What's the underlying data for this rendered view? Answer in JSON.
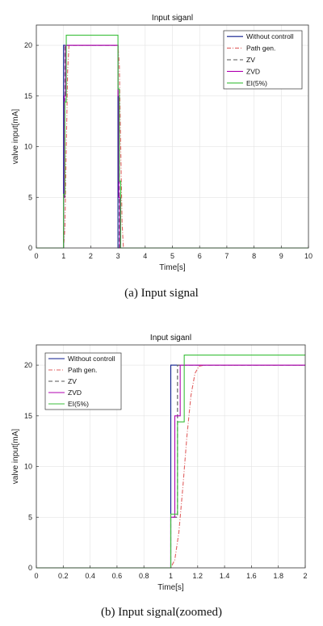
{
  "chart_data": [
    {
      "type": "line",
      "title": "Input siganl",
      "xlabel": "Time[s]",
      "ylabel": "valve input[mA]",
      "caption": "(a)  Input  signal",
      "xlim": [
        0,
        10
      ],
      "ylim": [
        0,
        22
      ],
      "xticks": [
        "0",
        "1",
        "2",
        "3",
        "4",
        "5",
        "6",
        "7",
        "8",
        "9",
        "10"
      ],
      "yticks": [
        "0",
        "5",
        "10",
        "15",
        "20"
      ],
      "grid": true,
      "legend_position": "top-right",
      "series": [
        {
          "name": "Without controll",
          "color": "#0b1a8c",
          "dash": "",
          "x": [
            0,
            1.0,
            1.0,
            3.0,
            3.0,
            10
          ],
          "y": [
            0,
            0,
            20,
            20,
            0,
            0
          ]
        },
        {
          "name": "Path gen.",
          "color": "#e06060",
          "dash": "5,2,1,2",
          "x": [
            0,
            1.0,
            1.05,
            1.1,
            1.15,
            1.2,
            3.0,
            3.05,
            3.1,
            3.15,
            3.2,
            10
          ],
          "y": [
            0,
            0,
            2,
            10,
            17.5,
            20,
            20,
            18,
            10,
            2.5,
            0,
            0
          ]
        },
        {
          "name": "ZV",
          "color": "#555555",
          "dash": "5,3",
          "x": [
            0,
            1.0,
            1.0,
            1.05,
            1.05,
            3.0,
            3.0,
            3.05,
            3.05,
            10
          ],
          "y": [
            0,
            0,
            5,
            5,
            20,
            20,
            15,
            15,
            0,
            0
          ]
        },
        {
          "name": "ZVD",
          "color": "#b000b0",
          "dash": "",
          "x": [
            0,
            1.0,
            1.0,
            1.03,
            1.03,
            1.07,
            1.07,
            3.0,
            3.0,
            3.03,
            3.03,
            3.07,
            3.07,
            10
          ],
          "y": [
            0,
            0,
            5,
            5,
            15,
            15,
            20,
            20,
            15,
            15,
            5,
            5,
            0,
            0
          ]
        },
        {
          "name": "EI(5%)",
          "color": "#3bbf3b",
          "dash": "",
          "x": [
            0,
            1.0,
            1.0,
            1.05,
            1.05,
            1.1,
            1.1,
            3.0,
            3.0,
            3.05,
            3.05,
            3.1,
            3.1,
            10
          ],
          "y": [
            0,
            0,
            5.3,
            5.3,
            14.4,
            14.4,
            21,
            21,
            15.7,
            15.7,
            6.6,
            6.6,
            0,
            0
          ]
        }
      ]
    },
    {
      "type": "line",
      "title": "Input siganl",
      "xlabel": "Time[s]",
      "ylabel": "valve input[mA]",
      "caption": "(b)  Input  signal(zoomed)",
      "xlim": [
        0,
        2
      ],
      "ylim": [
        0,
        22
      ],
      "xticks": [
        "0",
        "0.2",
        "0.4",
        "0.6",
        "0.8",
        "1",
        "1.2",
        "1.4",
        "1.6",
        "1.8",
        "2"
      ],
      "yticks": [
        "0",
        "5",
        "10",
        "15",
        "20"
      ],
      "grid": true,
      "legend_position": "top-left",
      "series": [
        {
          "name": "Without controll",
          "color": "#0b1a8c",
          "dash": "",
          "x": [
            0,
            1.0,
            1.0,
            2.0
          ],
          "y": [
            0,
            0,
            20,
            20
          ]
        },
        {
          "name": "Path gen.",
          "color": "#e06060",
          "dash": "5,2,1,2",
          "x": [
            0,
            1.0,
            1.03,
            1.06,
            1.09,
            1.12,
            1.15,
            1.18,
            1.21,
            1.25,
            2.0
          ],
          "y": [
            0,
            0,
            0.8,
            3.5,
            8,
            13,
            17,
            19.2,
            19.9,
            20,
            20
          ]
        },
        {
          "name": "ZV",
          "color": "#555555",
          "dash": "5,3",
          "x": [
            0,
            1.0,
            1.0,
            1.05,
            1.05,
            2.0
          ],
          "y": [
            0,
            0,
            5,
            5,
            20,
            20
          ]
        },
        {
          "name": "ZVD",
          "color": "#b000b0",
          "dash": "",
          "x": [
            0,
            1.0,
            1.0,
            1.03,
            1.03,
            1.07,
            1.07,
            2.0
          ],
          "y": [
            0,
            0,
            5,
            5,
            15,
            15,
            20,
            20
          ]
        },
        {
          "name": "EI(5%)",
          "color": "#3bbf3b",
          "dash": "",
          "x": [
            0,
            1.0,
            1.0,
            1.05,
            1.05,
            1.1,
            1.1,
            2.0
          ],
          "y": [
            0,
            0,
            5.3,
            5.3,
            14.4,
            14.4,
            21,
            21
          ]
        }
      ]
    }
  ]
}
